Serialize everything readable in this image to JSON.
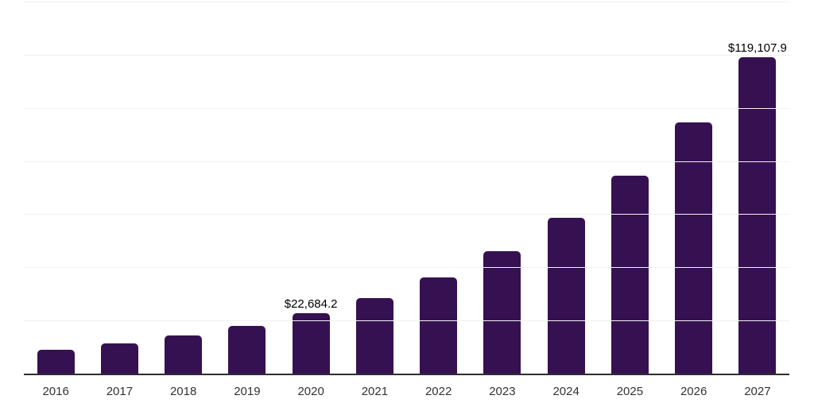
{
  "chart_data": {
    "type": "bar",
    "title": "",
    "xlabel": "",
    "ylabel": "",
    "categories": [
      "2016",
      "2017",
      "2018",
      "2019",
      "2020",
      "2021",
      "2022",
      "2023",
      "2024",
      "2025",
      "2026",
      "2027"
    ],
    "values": [
      9100,
      11500,
      14500,
      18100,
      22684.2,
      28500,
      36300,
      46200,
      58500,
      74600,
      94400,
      119107.9
    ],
    "data_labels": [
      "",
      "",
      "",
      "",
      "$22,684.2",
      "",
      "",
      "",
      "",
      "",
      "",
      "$119,107.9"
    ],
    "ylim": [
      0,
      140000
    ],
    "gridline_step": 20000,
    "grid": "horizontal-only",
    "legend": "none",
    "y_axis_tick_labels": "hidden",
    "colors": {
      "bar": "#361152",
      "gridline": "#f1f1f4",
      "axis_line": "#2e2e2e",
      "category_label_text": "#333333",
      "data_label_text": "#000000",
      "background": "#ffffff"
    }
  }
}
